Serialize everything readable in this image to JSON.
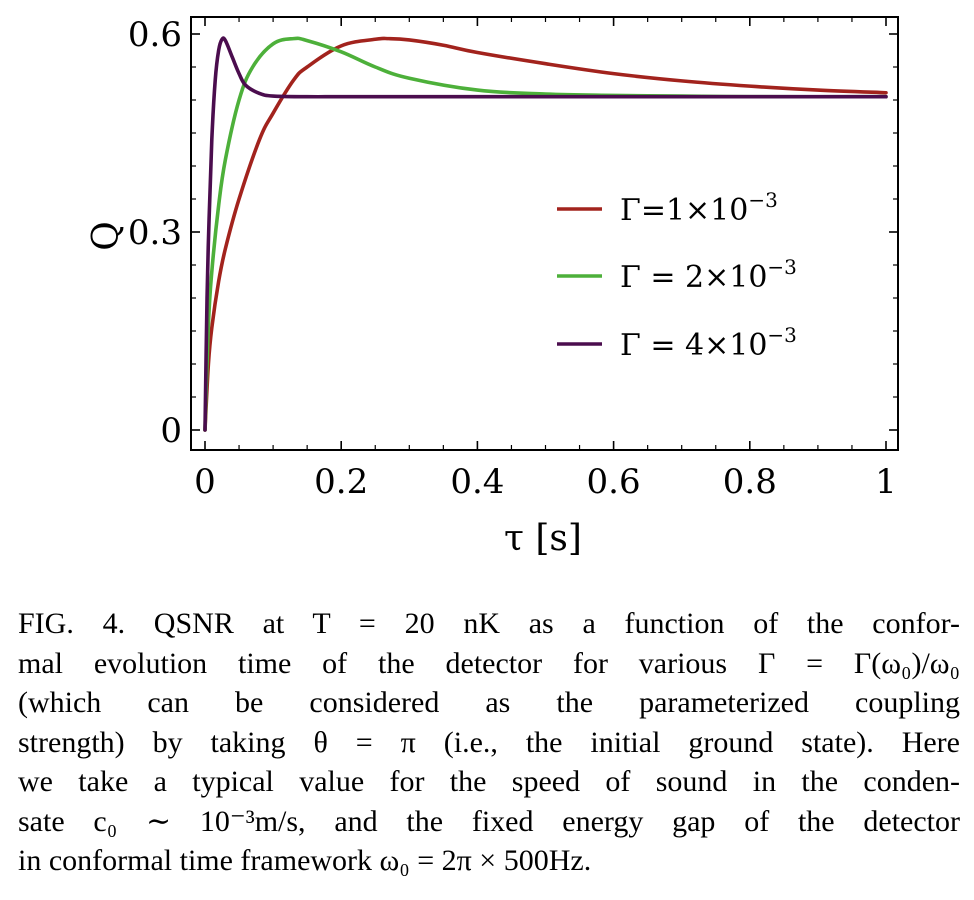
{
  "chart_data": {
    "type": "line",
    "xlabel": "τ [s]",
    "ylabel": "Q",
    "xlim": [
      0,
      1
    ],
    "ylim": [
      0,
      0.6
    ],
    "xticks": [
      {
        "value": 0,
        "label": "0"
      },
      {
        "value": 0.2,
        "label": "0.2"
      },
      {
        "value": 0.4,
        "label": "0.4"
      },
      {
        "value": 0.6,
        "label": "0.6"
      },
      {
        "value": 0.8,
        "label": "0.8"
      },
      {
        "value": 1,
        "label": "1"
      }
    ],
    "yticks": [
      {
        "value": 0,
        "label": "0"
      },
      {
        "value": 0.3,
        "label": "0.3"
      },
      {
        "value": 0.6,
        "label": "0.6"
      }
    ],
    "legend_position": "center-right",
    "series": [
      {
        "name": "Γ=1×10",
        "name_sup": "−3",
        "color": "#a2231d",
        "x": [
          0,
          0.005,
          0.01,
          0.02,
          0.03,
          0.05,
          0.08,
          0.1,
          0.13,
          0.15,
          0.2,
          0.25,
          0.27,
          0.3,
          0.35,
          0.4,
          0.5,
          0.6,
          0.7,
          0.8,
          0.9,
          1.0
        ],
        "y": [
          0,
          0.1,
          0.155,
          0.225,
          0.275,
          0.35,
          0.44,
          0.48,
          0.53,
          0.55,
          0.582,
          0.592,
          0.593,
          0.591,
          0.583,
          0.572,
          0.555,
          0.54,
          0.529,
          0.521,
          0.515,
          0.511
        ]
      },
      {
        "name": "Γ = 2×10",
        "name_sup": "−3",
        "color": "#4db03a",
        "x": [
          0,
          0.005,
          0.01,
          0.02,
          0.03,
          0.05,
          0.07,
          0.1,
          0.13,
          0.15,
          0.2,
          0.25,
          0.3,
          0.4,
          0.5,
          0.6,
          0.7,
          0.8,
          1.0
        ],
        "y": [
          0,
          0.16,
          0.24,
          0.34,
          0.41,
          0.5,
          0.55,
          0.585,
          0.593,
          0.59,
          0.573,
          0.55,
          0.533,
          0.515,
          0.509,
          0.507,
          0.506,
          0.505,
          0.505
        ]
      },
      {
        "name": "Γ = 4×10",
        "name_sup": "−3",
        "color": "#4b0d4e",
        "x": [
          0,
          0.003,
          0.006,
          0.01,
          0.015,
          0.02,
          0.025,
          0.03,
          0.04,
          0.05,
          0.06,
          0.08,
          0.1,
          0.15,
          0.2,
          0.3,
          0.5,
          1.0
        ],
        "y": [
          0,
          0.2,
          0.32,
          0.44,
          0.53,
          0.575,
          0.592,
          0.59,
          0.565,
          0.54,
          0.522,
          0.51,
          0.506,
          0.505,
          0.505,
          0.505,
          0.505,
          0.505
        ]
      }
    ]
  },
  "caption": {
    "lines": [
      "FIG. 4.  QSNR at T = 20 nK as a function of the confor-",
      "mal evolution time of the detector for various Γ = Γ(ω₀)/ω₀",
      "(which can be considered as the parameterized coupling",
      "strength) by taking θ = π (i.e., the initial ground state). Here",
      "we take a typical value for the speed of sound in the conden-",
      "sate c₀ ∼ 10⁻³m/s, and the fixed energy gap of the detector",
      "in conformal time framework ω₀ = 2π × 500Hz."
    ]
  }
}
